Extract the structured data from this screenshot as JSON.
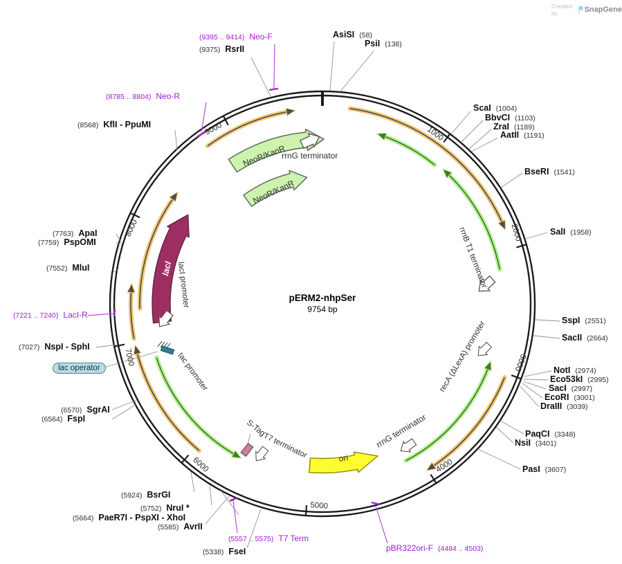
{
  "watermark": {
    "created_by": "Created by",
    "brand": "SnapGene"
  },
  "title": {
    "name": "pERM2-nhpSer",
    "size": "9754 bp"
  },
  "ticks": [
    "1000",
    "2000",
    "3000",
    "4000",
    "5000",
    "6000",
    "7000",
    "8000",
    "9000"
  ],
  "sites": {
    "asisi": {
      "name": "AsiSI",
      "pos": "(58)"
    },
    "psii": {
      "name": "PsiI",
      "pos": "(138)"
    },
    "scai": {
      "name": "ScaI",
      "pos": "(1004)"
    },
    "bbvci": {
      "name": "BbvCI",
      "pos": "(1103)"
    },
    "zrai": {
      "name": "ZraI",
      "pos": "(1189)"
    },
    "aatii": {
      "name": "AatII",
      "pos": "(1191)"
    },
    "bseri": {
      "name": "BseRI",
      "pos": "(1541)"
    },
    "sali": {
      "name": "SalI",
      "pos": "(1958)"
    },
    "sspi": {
      "name": "SspI",
      "pos": "(2551)"
    },
    "sacii": {
      "name": "SacII",
      "pos": "(2664)"
    },
    "noti": {
      "name": "NotI",
      "pos": "(2974)"
    },
    "eco53ki": {
      "name": "Eco53kI",
      "pos": "(2995)"
    },
    "saci": {
      "name": "SacI",
      "pos": "(2997)"
    },
    "ecori": {
      "name": "EcoRI",
      "pos": "(3001)"
    },
    "draiii": {
      "name": "DraIII",
      "pos": "(3039)"
    },
    "paqci": {
      "name": "PaqCI",
      "pos": "(3348)"
    },
    "nsii": {
      "name": "NsiI",
      "pos": "(3401)"
    },
    "pasi": {
      "name": "PasI",
      "pos": "(3607)"
    },
    "fsei": {
      "name": "FseI",
      "pos": "(5338)"
    },
    "avrii": {
      "name": "AvrII",
      "pos": "(5585)"
    },
    "paer7i": {
      "name": "PaeR7I - PspXI - XhoI",
      "pos": "(5664)"
    },
    "nrui": {
      "name": "NruI *",
      "pos": "(5752)"
    },
    "bsrgi": {
      "name": "BsrGI",
      "pos": "(5924)"
    },
    "fspi": {
      "name": "FspI",
      "pos": "(6564)"
    },
    "sgrai": {
      "name": "SgrAI",
      "pos": "(6570)"
    },
    "nspi_sphi": {
      "name": "NspI - SphI",
      "pos": "(7027)"
    },
    "mlui": {
      "name": "MluI",
      "pos": "(7552)"
    },
    "pspomi": {
      "name": "PspOMI",
      "pos": "(7759)"
    },
    "apai": {
      "name": "ApaI",
      "pos": "(7763)"
    },
    "kfli_ppumi": {
      "name": "KflI - PpuMI",
      "pos": "(8568)"
    },
    "rsrii": {
      "name": "RsrII",
      "pos": "(9375)"
    }
  },
  "primers": {
    "neo_f": {
      "name": "Neo-F",
      "range": "(9395 .. 9414)"
    },
    "neo_r": {
      "name": "Neo-R",
      "range": "(8785 .. 8804)"
    },
    "laci_r": {
      "name": "LacI-R",
      "range": "(7221 .. 7240)"
    },
    "t7_term": {
      "name": "T7 Term",
      "range": "(5557 .. 5575)"
    },
    "pbr322ori_f": {
      "name": "pBR322ori-F",
      "range": "(4484 .. 4503)"
    }
  },
  "features": {
    "neor_kanr": "NeoR/KanR",
    "rrng_terminator": "rrnG terminator",
    "laci": "lacI",
    "laci_promoter": "lacI promoter",
    "tac_promoter": "tac promoter",
    "lac_operator": "lac operator",
    "s_tag": "S-Tag",
    "t7_terminator": "T7 terminator",
    "ori": "ori",
    "rrnb_t1_terminator": "rrnB T1 terminator",
    "reca_promoter": "recA (ΔLexA) promoter"
  },
  "colors": {
    "purple": "#a21bd6",
    "purple_line": "#b44fe0",
    "orange_band": "#f5c878",
    "arc_dark": "#4d4d4d",
    "green_band": "#b5ef96",
    "green_dark": "#3e7d20",
    "neor_fill": "#cdf3ae",
    "laci_fill": "#9e2e62",
    "laci_stroke": "#63203f",
    "ori_fill": "#fcfc30",
    "ori_stroke": "#8a8a00",
    "stag_fill": "#c9809f",
    "tac_fill": "#2e7f93",
    "lac_op_fill": "#b9dde3",
    "ring": "#1c1c1c",
    "leader": "#909090"
  }
}
